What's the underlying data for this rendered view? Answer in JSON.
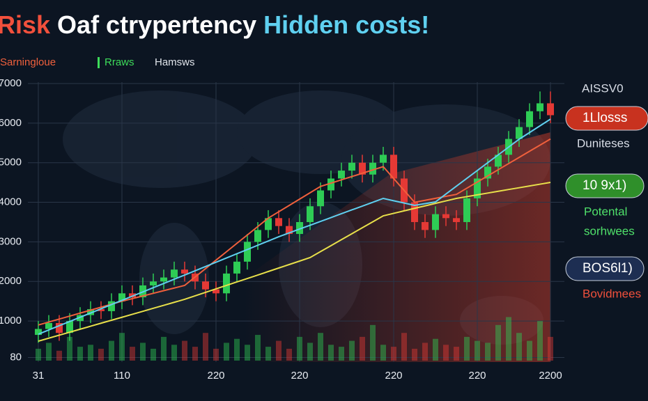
{
  "chart_data": {
    "type": "candlestick",
    "title": [
      "Risk",
      "Oaf ctrypertency",
      "Hidden costs!"
    ],
    "title_colors": [
      "#f2503c",
      "#ffffff",
      "#5fd0f0"
    ],
    "categories": [
      "31",
      null,
      null,
      null,
      null,
      null,
      null,
      null,
      "110",
      null,
      null,
      null,
      null,
      null,
      null,
      null,
      null,
      "220",
      null,
      null,
      null,
      null,
      null,
      null,
      null,
      "220",
      null,
      null,
      null,
      null,
      null,
      null,
      null,
      null,
      "220",
      null,
      null,
      null,
      null,
      null,
      null,
      null,
      "220",
      null,
      null,
      null,
      null,
      null,
      null,
      "2200"
    ],
    "candles": {
      "name": "Rraws",
      "color": "#3ddc5a",
      "up_color": "#2ecc55",
      "down_color": "#e53935",
      "open": [
        650,
        800,
        950,
        700,
        1000,
        1150,
        1300,
        1250,
        1500,
        1700,
        1600,
        1900,
        2000,
        2100,
        2300,
        2200,
        2000,
        1800,
        1700,
        2200,
        2500,
        3000,
        3300,
        3600,
        3400,
        3200,
        3500,
        3900,
        4300,
        4600,
        4800,
        5000,
        4700,
        5000,
        5200,
        4600,
        4000,
        3500,
        3300,
        3700,
        3600,
        3500,
        4100,
        4600,
        4900,
        5200,
        5600,
        5900,
        6300,
        6500
      ],
      "high": [
        1000,
        1150,
        1150,
        1200,
        1350,
        1500,
        1500,
        1700,
        1900,
        1900,
        2100,
        2200,
        2300,
        2500,
        2500,
        2400,
        2200,
        2000,
        2400,
        2700,
        3200,
        3500,
        3800,
        3800,
        3600,
        3700,
        4100,
        4500,
        4800,
        5000,
        5200,
        5200,
        5200,
        5400,
        5400,
        4800,
        4200,
        3700,
        3900,
        3900,
        3800,
        4300,
        4800,
        5100,
        5400,
        5800,
        6100,
        6500,
        6800,
        6800
      ],
      "low": [
        450,
        600,
        500,
        500,
        800,
        950,
        1050,
        1050,
        1300,
        1400,
        1400,
        1700,
        1800,
        1900,
        2000,
        1800,
        1600,
        1500,
        1500,
        2000,
        2300,
        2800,
        3100,
        3200,
        3000,
        3000,
        3300,
        3700,
        4100,
        4400,
        4600,
        4500,
        4500,
        4800,
        4400,
        3800,
        3300,
        3100,
        3100,
        3400,
        3300,
        3300,
        3900,
        4400,
        4700,
        5000,
        5400,
        5700,
        6100,
        6000
      ],
      "close": [
        800,
        950,
        700,
        1000,
        1150,
        1300,
        1250,
        1500,
        1700,
        1600,
        1900,
        2000,
        2100,
        2300,
        2200,
        2000,
        1800,
        1700,
        2200,
        2500,
        3000,
        3300,
        3600,
        3400,
        3200,
        3500,
        3900,
        4300,
        4600,
        4800,
        5000,
        4700,
        5000,
        5200,
        4600,
        4000,
        3500,
        3300,
        3700,
        3600,
        3500,
        4100,
        4600,
        4900,
        5200,
        5600,
        5900,
        6300,
        6500,
        6200
      ],
      "volume": [
        300,
        450,
        250,
        600,
        350,
        400,
        300,
        500,
        700,
        350,
        450,
        300,
        600,
        400,
        500,
        350,
        700,
        300,
        450,
        550,
        400,
        650,
        350,
        500,
        300,
        600,
        450,
        700,
        400,
        350,
        500,
        600,
        900,
        400,
        350,
        700,
        300,
        450,
        550,
        400,
        350,
        600,
        500,
        450,
        900,
        1100,
        700,
        500,
        1000,
        600
      ]
    },
    "series": [
      {
        "name": "Sarningloue",
        "color": "#f0603c",
        "values": [
          900,
          975,
          1050,
          1125,
          1200,
          1275,
          1350,
          1425,
          1500,
          1567,
          1633,
          1700,
          1767,
          1833,
          1900,
          2113,
          2325,
          2538,
          2750,
          2963,
          3175,
          3388,
          3600,
          3760,
          3920,
          4080,
          4240,
          4400,
          4483,
          4567,
          4650,
          4733,
          4817,
          4900,
          4600,
          4300,
          4000,
          4050,
          4100,
          4150,
          4200,
          4356,
          4511,
          4667,
          4822,
          4978,
          5133,
          5289,
          5444,
          5600
        ]
      },
      {
        "color": "#e8e04a",
        "values": [
          492,
          567,
          643,
          718,
          794,
          869,
          945,
          1020,
          1095,
          1171,
          1246,
          1322,
          1397,
          1473,
          1548,
          1636,
          1724,
          1812,
          1900,
          1988,
          2075,
          2163,
          2251,
          2339,
          2427,
          2515,
          2603,
          2754,
          2905,
          3055,
          3206,
          3357,
          3507,
          3658,
          3721,
          3784,
          3847,
          3909,
          3972,
          4035,
          4098,
          4143,
          4188,
          4233,
          4278,
          4323,
          4367,
          4412,
          4457,
          4502
        ]
      },
      {
        "name": "Hamsws",
        "color": "#5fd0f0",
        "values": [
          668,
          775,
          882,
          988,
          1095,
          1202,
          1309,
          1416,
          1522,
          1629,
          1736,
          1843,
          1949,
          2056,
          2163,
          2270,
          2378,
          2485,
          2593,
          2700,
          2807,
          2915,
          3022,
          3130,
          3227,
          3324,
          3420,
          3517,
          3614,
          3711,
          3808,
          3904,
          4001,
          4098,
          4039,
          3981,
          3922,
          3966,
          4010,
          4208,
          4406,
          4604,
          4802,
          5000,
          5197,
          5395,
          5593,
          5762,
          5931,
          6100
        ]
      }
    ],
    "ylim": [
      0,
      7300
    ],
    "yticks": [
      80,
      1000,
      2000,
      3000,
      4000,
      5000,
      6000,
      7000
    ],
    "grid": true,
    "annotations": [
      {
        "text": "AISSV0",
        "color": "#d8dde6"
      },
      {
        "text": "1Llosss",
        "color": "#ffffff",
        "fill": "#c8321f"
      },
      {
        "text": "Duniteses",
        "color": "#d8dde6"
      },
      {
        "text": "10 9x1)",
        "color": "#ffffff",
        "fill": "#2f8f2a"
      },
      {
        "text": "Potental",
        "color": "#4fe06a"
      },
      {
        "text": "sorhwees",
        "color": "#4fe06a"
      },
      {
        "text": "BOS6l1)",
        "color": "#ffffff",
        "fill": "#1d2e52"
      },
      {
        "text": "Bovidmees",
        "color": "#f0503c"
      }
    ]
  }
}
